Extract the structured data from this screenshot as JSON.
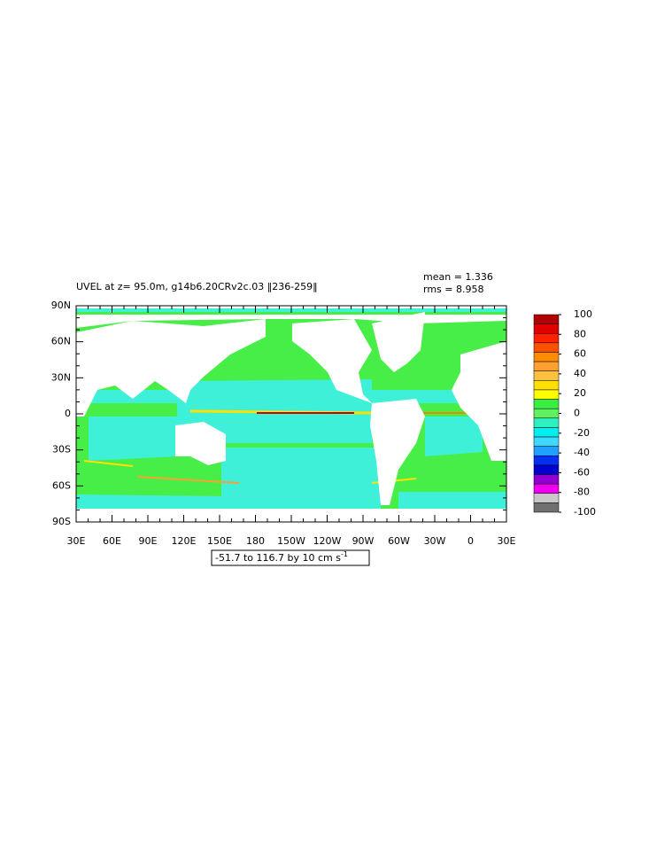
{
  "title": "UVEL at z=  95.0m, g14b6.20CRv2c.03 ‖236-259‖",
  "stats": {
    "mean": "mean = 1.336",
    "rms": "rms = 8.958"
  },
  "axes": {
    "y_labels": [
      "90N",
      "60N",
      "30N",
      "0",
      "30S",
      "60S",
      "90S"
    ],
    "x_labels": [
      "30E",
      "60E",
      "90E",
      "120E",
      "150E",
      "180",
      "150W",
      "120W",
      "90W",
      "60W",
      "30W",
      "0",
      "30E"
    ]
  },
  "contour_info": {
    "text": "-51.7 to 116.7 by 10 cm s",
    "superscript": "-1"
  },
  "colorbar": {
    "levels": [
      100,
      80,
      60,
      40,
      20,
      0,
      -20,
      -40,
      -60,
      -80,
      -100
    ],
    "colors": [
      "#b40000",
      "#e00000",
      "#ff2000",
      "#ff5000",
      "#ff8c00",
      "#ffa030",
      "#ffc040",
      "#ffe000",
      "#ffff00",
      "#38ee40",
      "#60f060",
      "#30f0c0",
      "#00f0f0",
      "#40d8ff",
      "#20a0ff",
      "#0030f0",
      "#0000d0",
      "#9000d0",
      "#f000f0",
      "#c8c8c8",
      "#707070"
    ]
  }
}
